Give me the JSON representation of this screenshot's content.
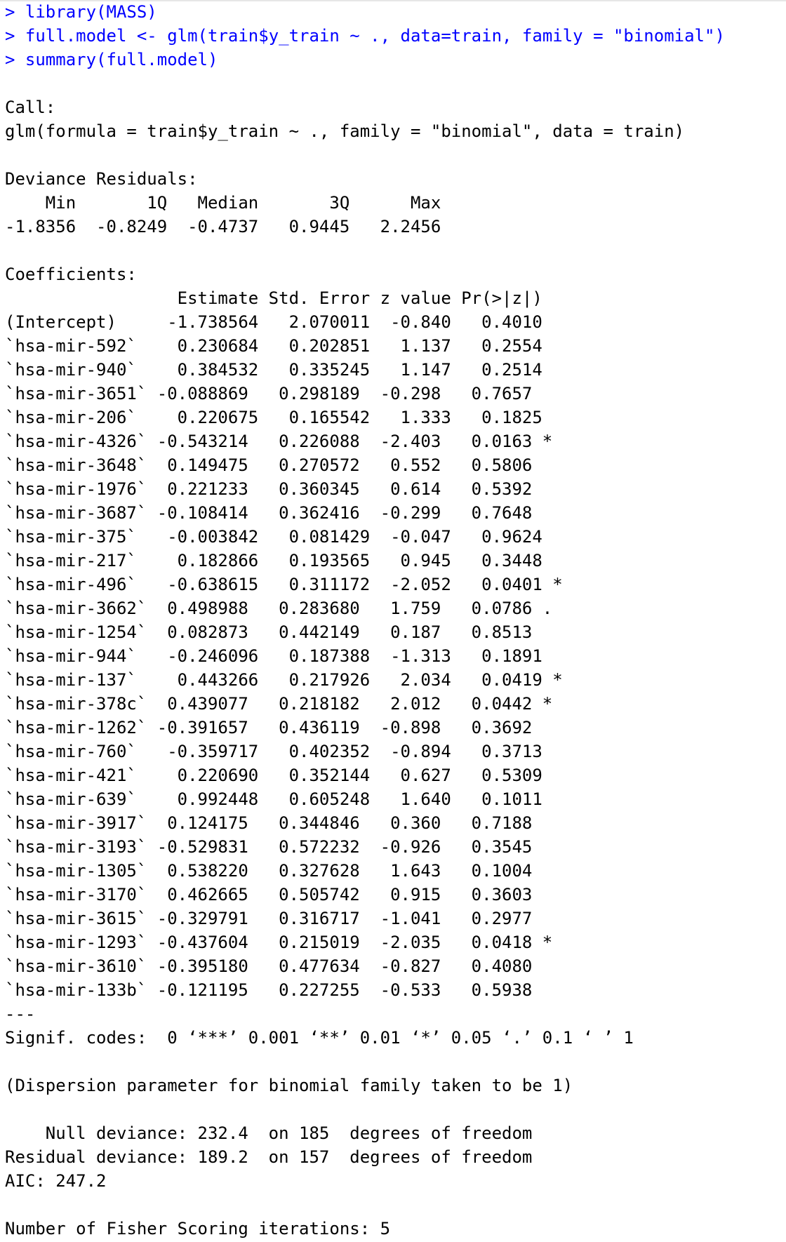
{
  "commands": [
    {
      "prompt": "> ",
      "text": "library(MASS)"
    },
    {
      "prompt": "> ",
      "text": "full.model <- glm(train$y_train ~ ., data=train, family = \"binomial\")"
    },
    {
      "prompt": "> ",
      "text": "summary(full.model)"
    }
  ],
  "call": {
    "label": "Call:",
    "formula": "glm(formula = train$y_train ~ ., family = \"binomial\", data = train)"
  },
  "deviance_residuals": {
    "label": "Deviance Residuals:",
    "header": "    Min       1Q   Median       3Q      Max  ",
    "values": "-1.8356  -0.8249  -0.4737   0.9445   2.2456  "
  },
  "coefficients": {
    "label": "Coefficients:",
    "header": "                 Estimate Std. Error z value Pr(>|z|)  ",
    "rows": [
      "(Intercept)     -1.738564   2.070011  -0.840   0.4010  ",
      "`hsa-mir-592`    0.230684   0.202851   1.137   0.2554  ",
      "`hsa-mir-940`    0.384532   0.335245   1.147   0.2514  ",
      "`hsa-mir-3651` -0.088869   0.298189  -0.298   0.7657  ",
      "`hsa-mir-206`    0.220675   0.165542   1.333   0.1825  ",
      "`hsa-mir-4326` -0.543214   0.226088  -2.403   0.0163 *",
      "`hsa-mir-3648`  0.149475   0.270572   0.552   0.5806  ",
      "`hsa-mir-1976`  0.221233   0.360345   0.614   0.5392  ",
      "`hsa-mir-3687` -0.108414   0.362416  -0.299   0.7648  ",
      "`hsa-mir-375`   -0.003842   0.081429  -0.047   0.9624  ",
      "`hsa-mir-217`    0.182866   0.193565   0.945   0.3448  ",
      "`hsa-mir-496`   -0.638615   0.311172  -2.052   0.0401 *",
      "`hsa-mir-3662`  0.498988   0.283680   1.759   0.0786 .",
      "`hsa-mir-1254`  0.082873   0.442149   0.187   0.8513  ",
      "`hsa-mir-944`   -0.246096   0.187388  -1.313   0.1891  ",
      "`hsa-mir-137`    0.443266   0.217926   2.034   0.0419 *",
      "`hsa-mir-378c`  0.439077   0.218182   2.012   0.0442 *",
      "`hsa-mir-1262` -0.391657   0.436119  -0.898   0.3692  ",
      "`hsa-mir-760`   -0.359717   0.402352  -0.894   0.3713  ",
      "`hsa-mir-421`    0.220690   0.352144   0.627   0.5309  ",
      "`hsa-mir-639`    0.992448   0.605248   1.640   0.1011  ",
      "`hsa-mir-3917`  0.124175   0.344846   0.360   0.7188  ",
      "`hsa-mir-3193` -0.529831   0.572232  -0.926   0.3545  ",
      "`hsa-mir-1305`  0.538220   0.327628   1.643   0.1004  ",
      "`hsa-mir-3170`  0.462665   0.505742   0.915   0.3603  ",
      "`hsa-mir-3615` -0.329791   0.316717  -1.041   0.2977  ",
      "`hsa-mir-1293` -0.437604   0.215019  -2.035   0.0418 *",
      "`hsa-mir-3610` -0.395180   0.477634  -0.827   0.4080  ",
      "`hsa-mir-133b` -0.121195   0.227255  -0.533   0.5938  "
    ],
    "separator": "---",
    "signif_codes": "Signif. codes:  0 ‘***’ 0.001 ‘**’ 0.01 ‘*’ 0.05 ‘.’ 0.1 ‘ ’ 1"
  },
  "dispersion": "(Dispersion parameter for binomial family taken to be 1)",
  "deviance": {
    "null": "    Null deviance: 232.4  on 185  degrees of freedom",
    "residual": "Residual deviance: 189.2  on 157  degrees of freedom"
  },
  "aic": "AIC: 247.2",
  "fisher": "Number of Fisher Scoring iterations: 5",
  "colors": {
    "command": "#0000ff",
    "output": "#000000",
    "background": "#ffffff"
  }
}
